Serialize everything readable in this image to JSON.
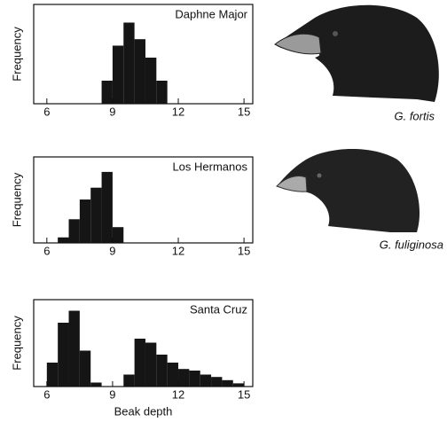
{
  "chart_data": [
    {
      "type": "histogram",
      "title": "Daphne Major",
      "ylabel": "Frequency",
      "annotation": "G. fortis",
      "color": "#151515",
      "bins": [
        8.5,
        9,
        9.5,
        10,
        10.5,
        11,
        11.5
      ],
      "values": [
        25,
        63,
        88,
        70,
        50,
        25
      ],
      "xlim": [
        5.4,
        15.4
      ],
      "ylim": [
        0,
        100
      ],
      "xticks": [
        6,
        9,
        12,
        15
      ]
    },
    {
      "type": "histogram",
      "title": "Los Hermanos",
      "ylabel": "Frequency",
      "annotation": "G. fuliginosa",
      "color": "#151515",
      "bins": [
        6.5,
        7,
        7.5,
        8,
        8.5,
        9,
        9.5
      ],
      "values": [
        7,
        30,
        55,
        70,
        90,
        20
      ],
      "xlim": [
        5.4,
        15.4
      ],
      "ylim": [
        0,
        100
      ],
      "xticks": [
        6,
        9,
        12,
        15
      ]
    },
    {
      "type": "histogram",
      "title": "Santa Cruz",
      "ylabel": "Frequency",
      "xlabel": "Beak depth",
      "color": "#151515",
      "bins": [
        6,
        6.5,
        7,
        7.5,
        8,
        8.5,
        9,
        9.5,
        10,
        10.5,
        11,
        11.5,
        12,
        12.5,
        13,
        13.5,
        14,
        14.5,
        15
      ],
      "values": [
        30,
        80,
        95,
        45,
        5,
        0,
        0,
        15,
        60,
        55,
        40,
        30,
        22,
        20,
        15,
        12,
        8,
        4
      ],
      "xlim": [
        5.4,
        15.4
      ],
      "ylim": [
        0,
        100
      ],
      "xticks": [
        6,
        9,
        12,
        15
      ]
    }
  ]
}
